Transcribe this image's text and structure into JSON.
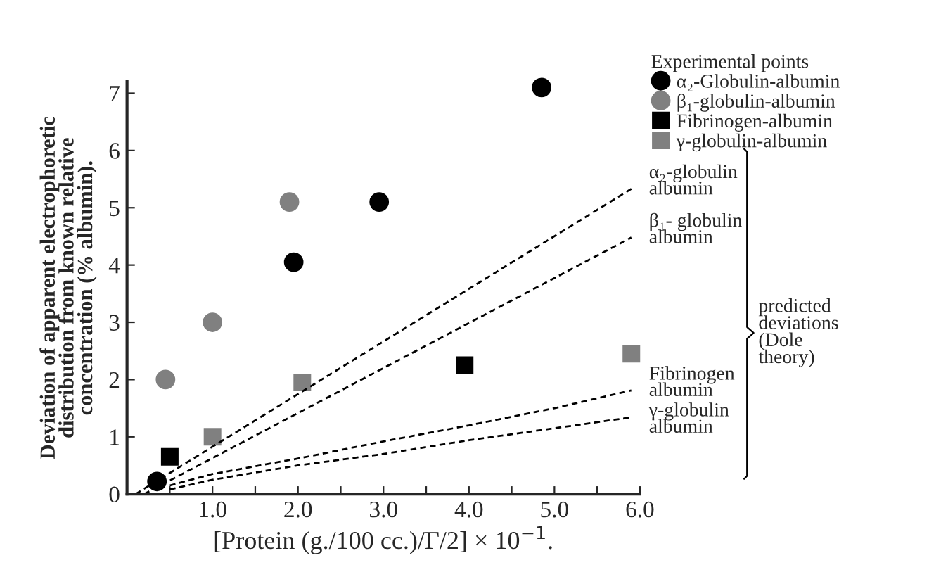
{
  "chart_data": {
    "type": "scatter",
    "xlabel": "[Protein (g./100 cc.)/Γ/2] × 10$^{−1}$.",
    "ylabel": "Deviation of apparent electrophoretic\ndistribution from known relative\nconcentration (% albumin).",
    "legend_title": "Experimental points",
    "legend": "top right",
    "xlim": [
      0,
      6
    ],
    "ylim": [
      0,
      7.2
    ],
    "xticks": [
      {
        "value": 0.5,
        "label": null
      },
      {
        "value": 1,
        "label": "1.0"
      },
      {
        "value": 1.5,
        "label": null
      },
      {
        "value": 2,
        "label": "2.0"
      },
      {
        "value": 2.5,
        "label": null
      },
      {
        "value": 3,
        "label": "3.0"
      },
      {
        "value": 3.5,
        "label": null
      },
      {
        "value": 4,
        "label": "4.0"
      },
      {
        "value": 4.5,
        "label": null
      },
      {
        "value": 5,
        "label": "5.0"
      },
      {
        "value": 5.5,
        "label": null
      },
      {
        "value": 6,
        "label": "6.0"
      }
    ],
    "yticks": [
      0,
      1,
      2,
      3,
      4,
      5,
      6,
      7
    ],
    "grid": false,
    "series": [
      {
        "name": "α₂-Globulin-albumin",
        "color": "#000000",
        "marker": "circle",
        "x": [
          0.35,
          1.95,
          2.95,
          4.85
        ],
        "values": [
          0.22,
          4.05,
          5.1,
          7.1
        ]
      },
      {
        "name": "β₁-globulin-albumin",
        "color": "#808080",
        "marker": "circle",
        "x": [
          0.45,
          1.0,
          1.9
        ],
        "values": [
          2.0,
          3.0,
          5.1
        ]
      },
      {
        "name": "Fibrinogen-albumin",
        "color": "#000000",
        "marker": "square",
        "x": [
          0.5,
          3.95
        ],
        "values": [
          0.65,
          2.25
        ]
      },
      {
        "name": "γ-globulin-albumin",
        "color": "#808080",
        "marker": "square",
        "x": [
          1.0,
          2.05,
          5.9
        ],
        "values": [
          1.0,
          1.95,
          2.45
        ]
      },
      {
        "name": "α₂-globulin\nalbumin",
        "type": "line",
        "line_style": "dashed",
        "marker": "none",
        "color": "#000000",
        "x": [
          0.1,
          5.9
        ],
        "values": [
          0.0,
          5.33
        ]
      },
      {
        "name": "β₁- globulin\nalbumin",
        "type": "line",
        "line_style": "dashed",
        "marker": "none",
        "color": "#000000",
        "x": [
          0.2,
          5.9
        ],
        "values": [
          0.0,
          4.48
        ]
      },
      {
        "name": "Fibrinogen\nalbumin",
        "type": "line",
        "line_style": "dashed",
        "marker": "none",
        "color": "#000000",
        "x": [
          0.5,
          1,
          2,
          3,
          4,
          5,
          5.9
        ],
        "values": [
          0.15,
          0.35,
          0.62,
          0.92,
          1.2,
          1.5,
          1.81
        ]
      },
      {
        "name": "γ-globulin\nalbumin",
        "type": "line",
        "line_style": "dashed",
        "marker": "none",
        "color": "#000000",
        "x": [
          0.5,
          1,
          2,
          3,
          4,
          5,
          5.9
        ],
        "values": [
          0.08,
          0.25,
          0.5,
          0.7,
          0.94,
          1.15,
          1.34
        ]
      }
    ],
    "annotations": [
      "predicted\ndeviations\n(Dole\ntheory)"
    ]
  }
}
